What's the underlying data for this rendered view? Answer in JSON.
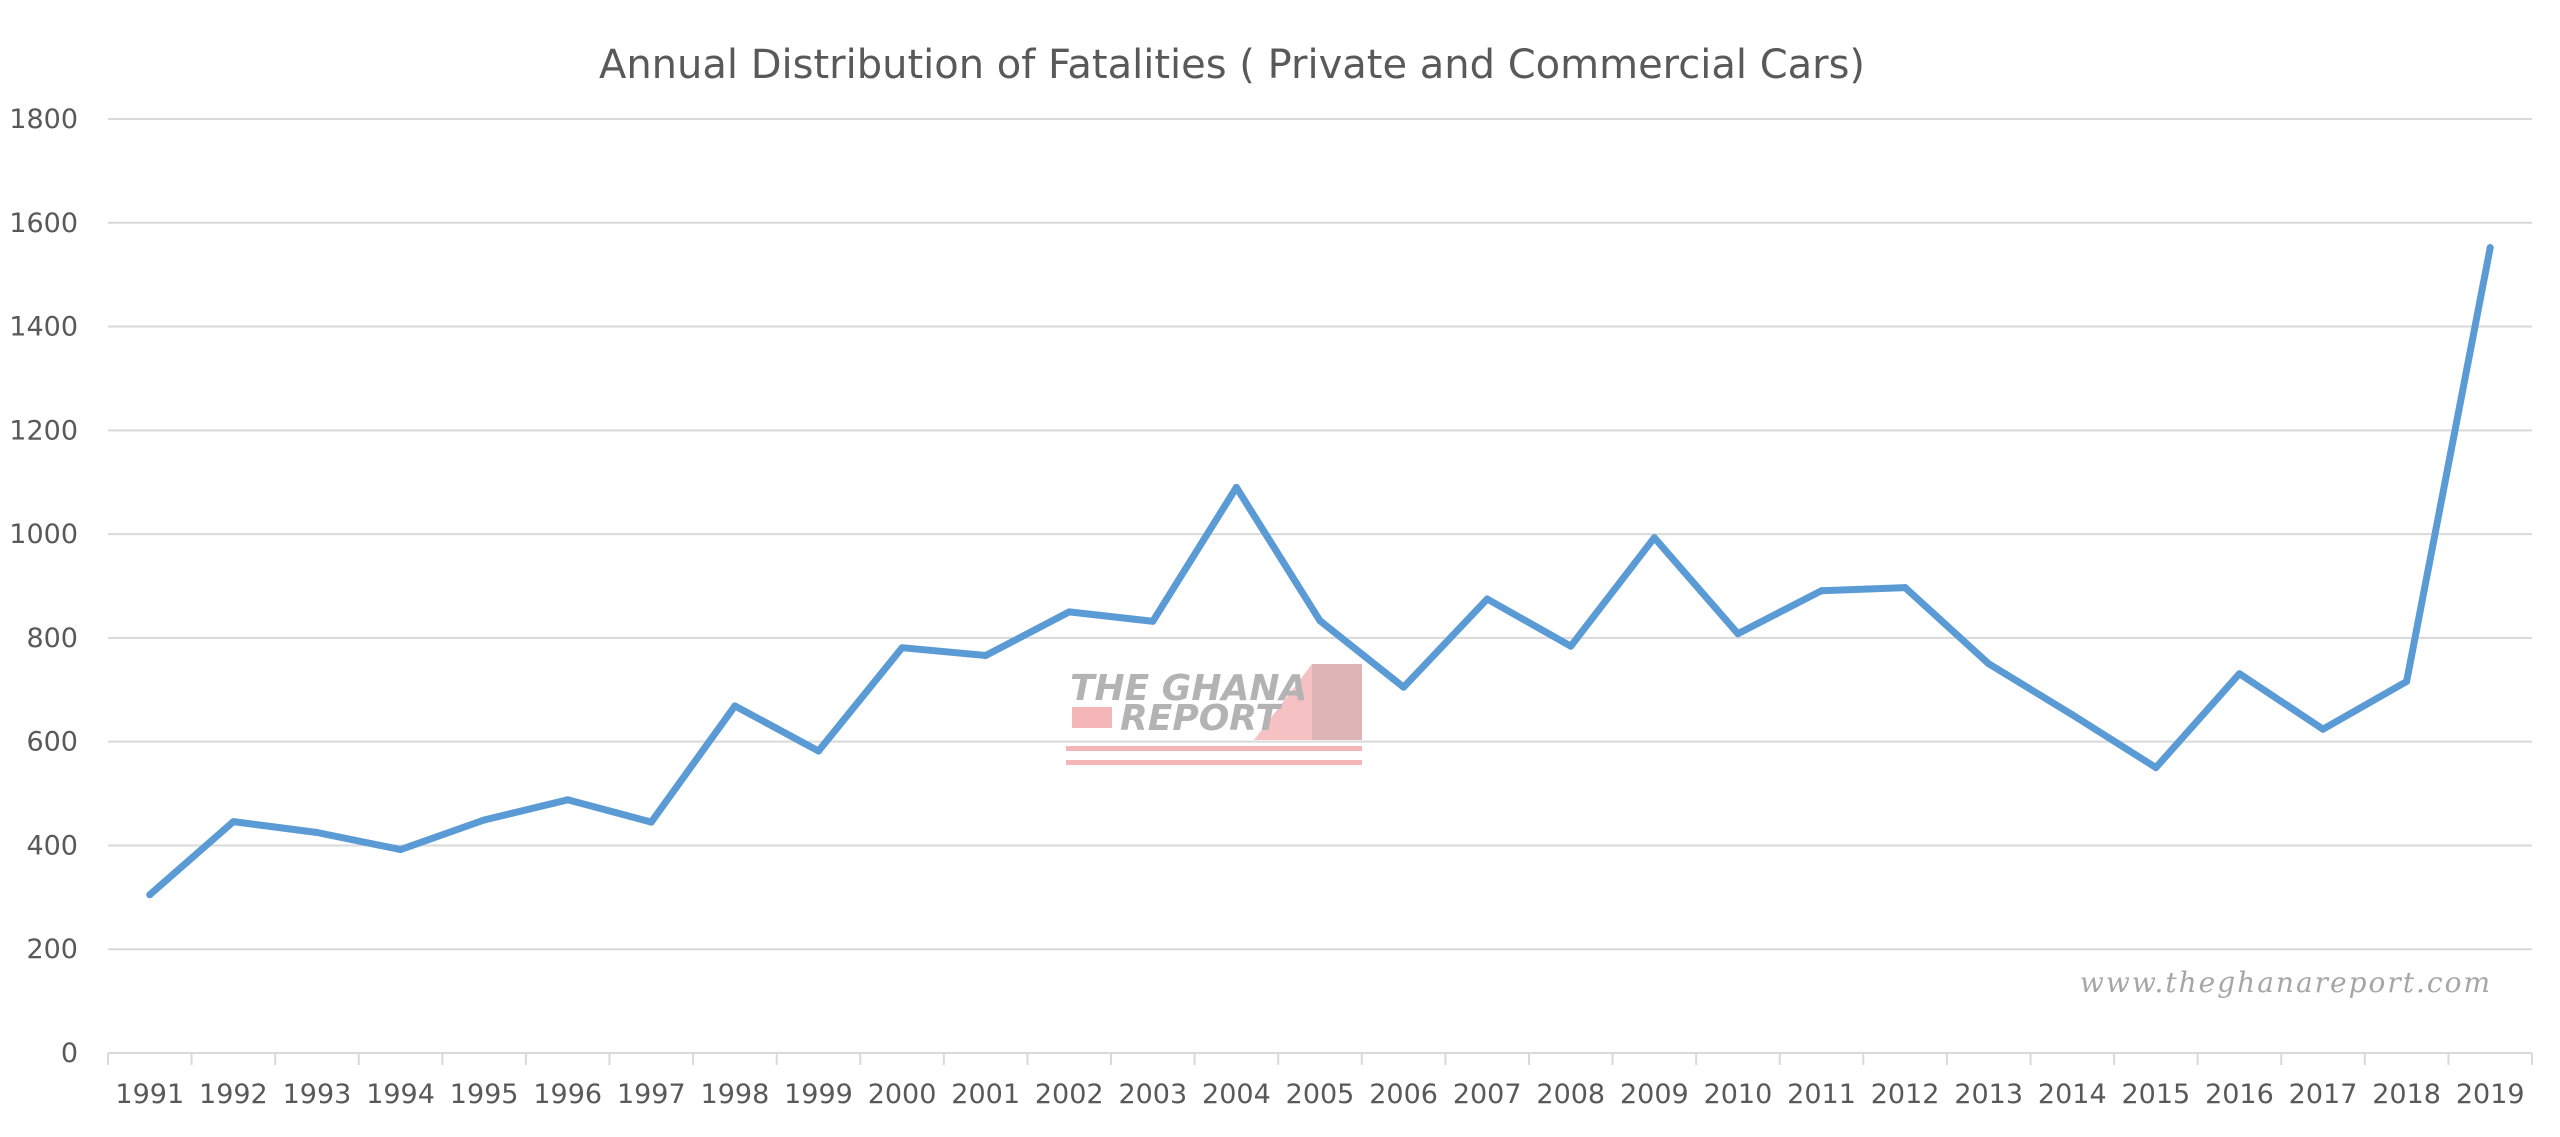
{
  "chart_data": {
    "type": "line",
    "title": "Annual Distribution of Fatalities ( Private and Commercial Cars)",
    "xlabel": "",
    "ylabel": "",
    "categories": [
      "1991",
      "1992",
      "1993",
      "1994",
      "1995",
      "1996",
      "1997",
      "1998",
      "1999",
      "2000",
      "2001",
      "2002",
      "2003",
      "2004",
      "2005",
      "2006",
      "2007",
      "2008",
      "2009",
      "2010",
      "2011",
      "2012",
      "2013",
      "2014",
      "2015",
      "2016",
      "2017",
      "2018",
      "2019"
    ],
    "series": [
      {
        "name": "",
        "values": [
          305,
          446,
          425,
          392,
          449,
          488,
          445,
          669,
          582,
          781,
          766,
          850,
          832,
          1090,
          833,
          705,
          875,
          784,
          993,
          808,
          891,
          897,
          750,
          652,
          550,
          731,
          624,
          716,
          1552
        ],
        "color": "#5b9bd5"
      }
    ],
    "ylim": [
      0,
      1800
    ],
    "yticks": [
      0,
      200,
      400,
      600,
      800,
      1000,
      1200,
      1400,
      1600,
      1800
    ],
    "grid": true,
    "legend": "none",
    "gridColor": "#d9d9d9",
    "textColor": "#595959"
  },
  "watermark": {
    "logo_line1": "THE GHANA",
    "logo_line2": "REPORT",
    "url": "www.theghanareport.com",
    "logo_color": "#f4b6b8"
  }
}
